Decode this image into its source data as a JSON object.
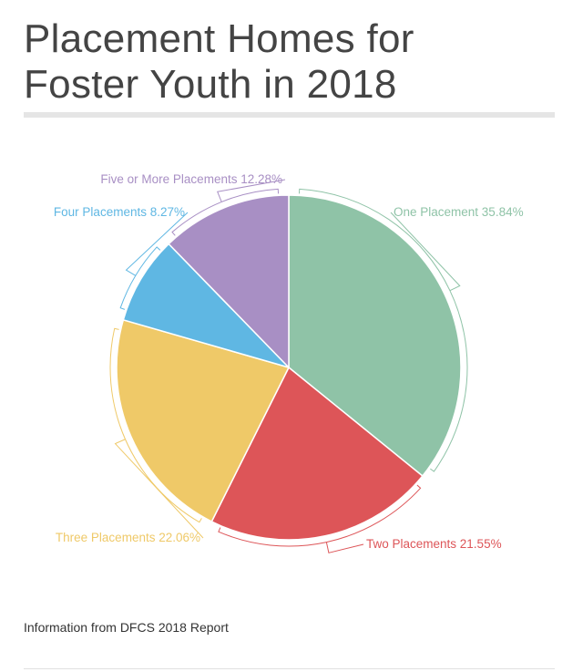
{
  "title": {
    "line1": "Placement Homes for",
    "line2": "Foster Youth in 2018"
  },
  "source": "Information from DFCS 2018 Report",
  "chart_data": {
    "type": "pie",
    "title": "Placement Homes for Foster Youth in 2018",
    "slices": [
      {
        "name": "One Placement",
        "value": 35.84,
        "label": "One Placement 35.84%",
        "color": "#8fc3a7"
      },
      {
        "name": "Two Placements",
        "value": 21.55,
        "label": "Two Placements 21.55%",
        "color": "#dd5558"
      },
      {
        "name": "Three Placements",
        "value": 22.06,
        "label": "Three Placements 22.06%",
        "color": "#efc968"
      },
      {
        "name": "Four Placements",
        "value": 8.27,
        "label": "Four Placements 8.27%",
        "color": "#5fb7e3"
      },
      {
        "name": "Five or More Placements",
        "value": 12.28,
        "label": "Five or More Placements 12.28%",
        "color": "#a88fc4"
      }
    ]
  }
}
